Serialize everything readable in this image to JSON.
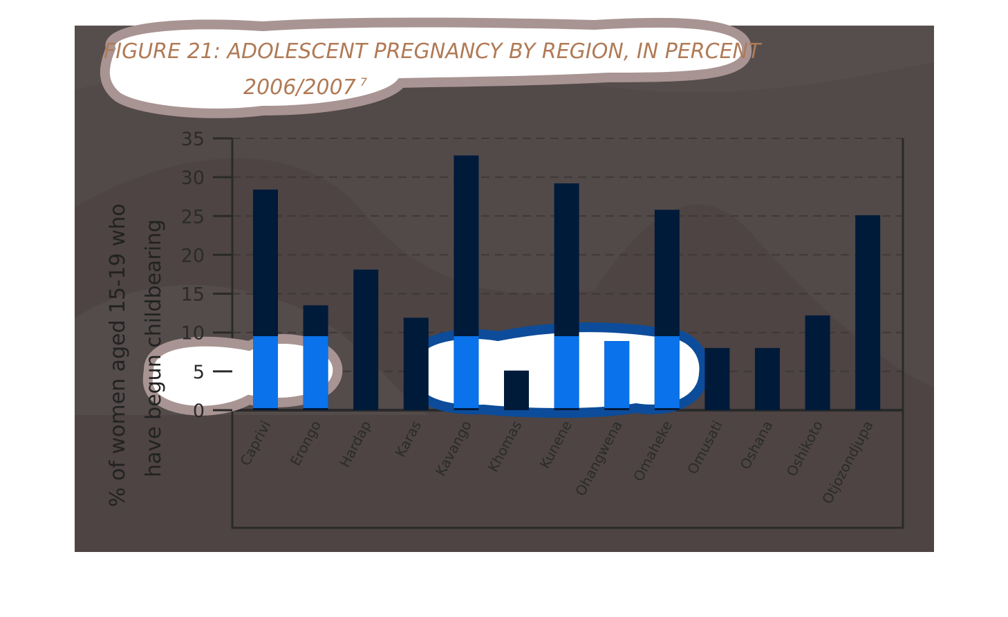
{
  "figure": {
    "title_line1": "FIGURE 21: ADOLESCENT PREGNANCY BY REGION, IN PERCENT",
    "title_line2": "2006/2007",
    "title_footnote": "7"
  },
  "colors": {
    "background_panel": "#524a49",
    "bar": "#001a3a",
    "bar_highlight": "#0a72ea",
    "cloud_fill": "#ffffff",
    "cloud_border": "#a89492",
    "title": "#b07a56"
  },
  "chart_data": {
    "type": "bar",
    "title": "FIGURE 21: ADOLESCENT PREGNANCY BY REGION, IN PERCENT 2006/2007",
    "ylabel_line1": "% of women aged 15-19 who",
    "ylabel_line2": "have begun childbearing",
    "xlabel": "",
    "ylim": [
      0,
      35
    ],
    "yticks": [
      0,
      5,
      10,
      15,
      20,
      25,
      30,
      35
    ],
    "grid": "horizontal dashed",
    "categories": [
      "Caprivi",
      "Erongo",
      "Hardap",
      "Karas",
      "Kavango",
      "Khomas",
      "Kunene",
      "Ohangwena",
      "Omaheke",
      "Omusati",
      "Oshana",
      "Oshikoto",
      "Otjozondjupa"
    ],
    "values": [
      28.4,
      13.5,
      18.1,
      11.9,
      32.8,
      5.1,
      29.2,
      8.9,
      25.8,
      8.0,
      8.0,
      12.2,
      25.1
    ]
  }
}
